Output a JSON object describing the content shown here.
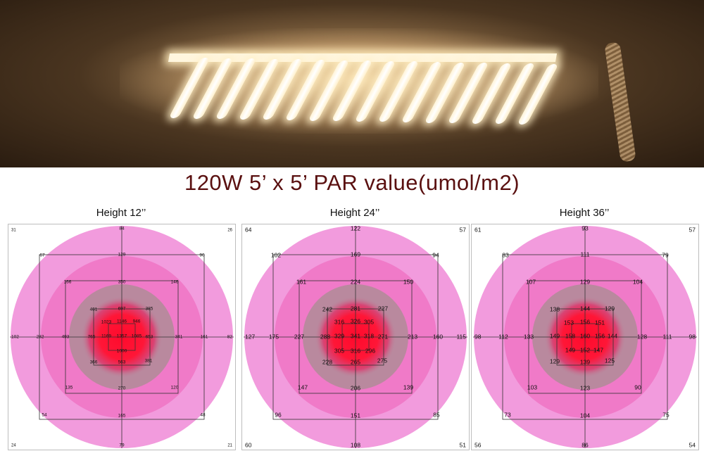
{
  "headline": "120W  5’ x 5’ PAR value(umol/m2)",
  "colors": {
    "outer_circle": "#f29bdd",
    "mid_circle": "#f07ac8",
    "inner_circle": "#b9899e",
    "hot_center": "#ff0a2c"
  },
  "panels": [
    {
      "title": "Height 12’’",
      "corners": [
        "31",
        "26",
        "24",
        "21"
      ],
      "outer_mid": [
        "84",
        "82",
        "79",
        "102"
      ],
      "outer_diag": [
        "67",
        "90",
        "48",
        "54"
      ],
      "outer_grid": [
        "129",
        "161",
        "165",
        "282"
      ],
      "second": [
        "166",
        "350",
        "146",
        "493",
        "341",
        "135",
        "270",
        "120"
      ],
      "inner": [
        "461",
        "697",
        "385",
        "765",
        "653",
        "366",
        "563",
        "381"
      ],
      "core": [
        "1023",
        "1146",
        "946",
        "1169",
        "1357",
        "1085",
        "1000"
      ]
    },
    {
      "title": "Height 24’’",
      "corners": [
        "64",
        "57",
        "60",
        "51"
      ],
      "outer_mid": [
        "122",
        "115",
        "108",
        "127"
      ],
      "outer_diag": [
        "102",
        "94",
        "85",
        "96"
      ],
      "outer_grid": [
        "169",
        "160",
        "151",
        "175"
      ],
      "second": [
        "161",
        "224",
        "150",
        "227",
        "213",
        "147",
        "206",
        "139"
      ],
      "inner": [
        "242",
        "281",
        "227",
        "288",
        "271",
        "228",
        "265",
        "275"
      ],
      "core": [
        "316",
        "326",
        "305",
        "329",
        "341",
        "318",
        "305",
        "316",
        "296"
      ]
    },
    {
      "title": "Height 36’’",
      "corners": [
        "61",
        "57",
        "56",
        "54"
      ],
      "outer_mid": [
        "93",
        "98",
        "86",
        "98"
      ],
      "outer_diag": [
        "83",
        "79",
        "75",
        "73"
      ],
      "outer_grid": [
        "111",
        "111",
        "104",
        "112"
      ],
      "second": [
        "107",
        "129",
        "104",
        "133",
        "128",
        "103",
        "123",
        "90"
      ],
      "inner": [
        "138",
        "144",
        "129",
        "129",
        "139",
        "125"
      ],
      "core": [
        "153",
        "156",
        "151",
        "149",
        "158",
        "160",
        "156",
        "144",
        "149",
        "152",
        "147"
      ]
    }
  ]
}
